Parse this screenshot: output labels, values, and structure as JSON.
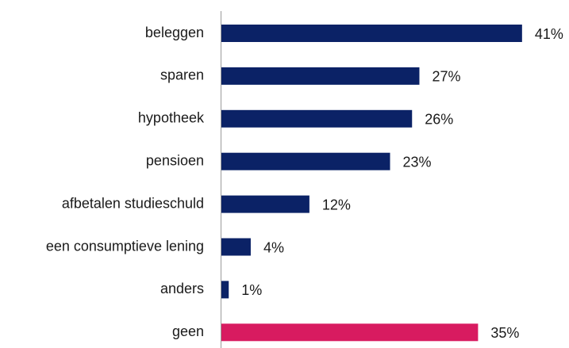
{
  "chart_data": {
    "type": "bar",
    "orientation": "horizontal",
    "categories": [
      "beleggen",
      "sparen",
      "hypotheek",
      "pensioen",
      "afbetalen studieschuld",
      "een consumptieve lening",
      "anders",
      "geen"
    ],
    "values": [
      41,
      27,
      26,
      23,
      12,
      4,
      1,
      35
    ],
    "value_labels": [
      "41%",
      "27%",
      "26%",
      "23%",
      "12%",
      "4%",
      "1%",
      "35%"
    ],
    "colors": [
      "#0b2266",
      "#0b2266",
      "#0b2266",
      "#0b2266",
      "#0b2266",
      "#0b2266",
      "#0b2266",
      "#d81b60"
    ]
  }
}
